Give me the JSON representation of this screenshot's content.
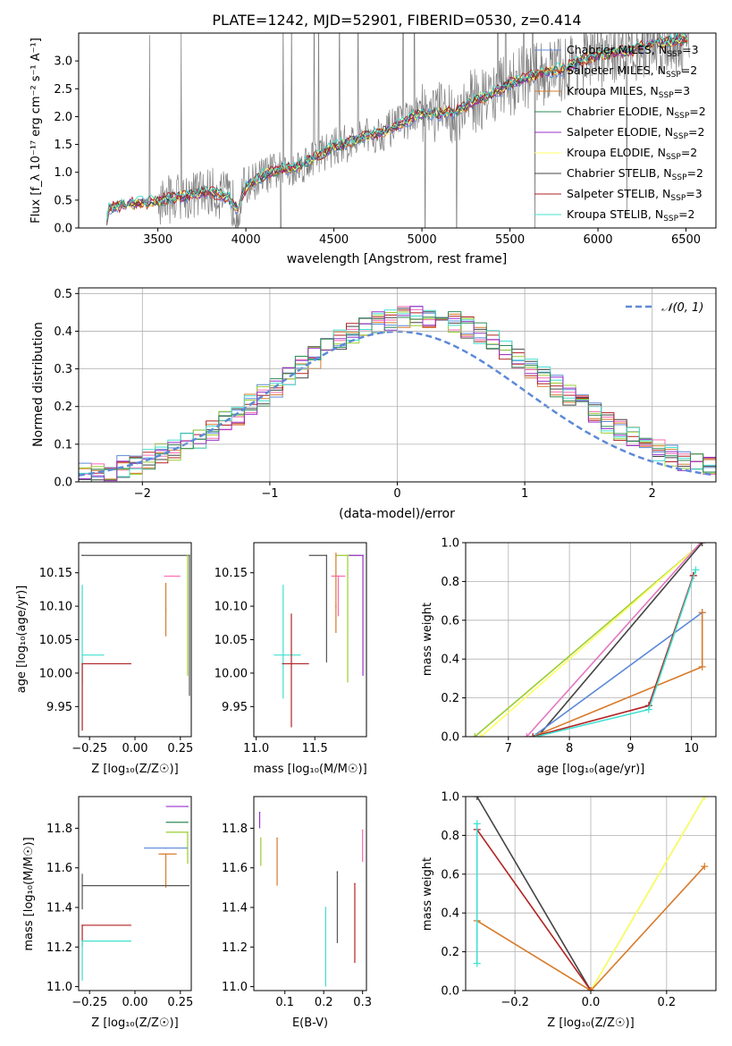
{
  "chart_data": [
    {
      "type": "line",
      "id": "spectrum",
      "title": "PLATE=1242, MJD=52901, FIBERID=0530, z=0.414",
      "xlabel": "wavelength [Angstrom, rest frame]",
      "ylabel": "Flux [f_λ 10⁻¹⁷ erg cm⁻² s⁻¹ A⁻¹]",
      "xlim": [
        3050,
        6670
      ],
      "ylim": [
        0,
        3.5
      ],
      "xticks": [
        "3500",
        "4000",
        "4500",
        "5000",
        "5500",
        "6000",
        "6500"
      ],
      "yticks": [
        "0.0",
        "0.5",
        "1.0",
        "1.5",
        "2.0",
        "2.5",
        "3.0"
      ],
      "legend_position": "right",
      "legend": [
        "Chabrier MILES, N_SSP=3",
        "Salpeter MILES, N_SSP=2",
        "Kroupa MILES, N_SSP=3",
        "Chabrier ELODIE, N_SSP=2",
        "Salpeter ELODIE, N_SSP=2",
        "Kroupa ELODIE, N_SSP=2",
        "Chabrier STELIB, N_SSP=2",
        "Salpeter STELIB, N_SSP=3",
        "Kroupa STELIB, N_SSP=2"
      ],
      "continuum": [
        [
          3200,
          0.0
        ],
        [
          3220,
          0.35
        ],
        [
          3300,
          0.42
        ],
        [
          3400,
          0.45
        ],
        [
          3500,
          0.48
        ],
        [
          3600,
          0.55
        ],
        [
          3700,
          0.6
        ],
        [
          3800,
          0.65
        ],
        [
          3900,
          0.55
        ],
        [
          3950,
          0.35
        ],
        [
          4000,
          0.75
        ],
        [
          4100,
          0.95
        ],
        [
          4200,
          1.05
        ],
        [
          4300,
          1.1
        ],
        [
          4400,
          1.3
        ],
        [
          4500,
          1.45
        ],
        [
          4600,
          1.55
        ],
        [
          4700,
          1.65
        ],
        [
          4800,
          1.75
        ],
        [
          4900,
          1.9
        ],
        [
          5000,
          2.05
        ],
        [
          5100,
          2.05
        ],
        [
          5200,
          2.1
        ],
        [
          5300,
          2.3
        ],
        [
          5400,
          2.4
        ],
        [
          5500,
          2.6
        ],
        [
          5600,
          2.7
        ],
        [
          5700,
          2.8
        ],
        [
          5800,
          2.85
        ],
        [
          5900,
          3.0
        ],
        [
          6000,
          3.1
        ],
        [
          6100,
          3.15
        ],
        [
          6200,
          3.2
        ],
        [
          6300,
          3.3
        ],
        [
          6400,
          3.35
        ],
        [
          6500,
          3.4
        ]
      ]
    },
    {
      "type": "histogram",
      "id": "residuals",
      "xlabel": "(data-model)/error",
      "ylabel": "Normed distribution",
      "xlim": [
        -2.5,
        2.5
      ],
      "ylim": [
        0,
        0.515
      ],
      "xticks": [
        "−2",
        "−1",
        "0",
        "1",
        "2"
      ],
      "yticks": [
        "0.0",
        "0.1",
        "0.2",
        "0.3",
        "0.4",
        "0.5"
      ],
      "legend": [
        "𝒩(0, 1)"
      ],
      "legend_position": "top-right",
      "grid": true
    },
    {
      "type": "scatter",
      "id": "age_vs_Z",
      "xlabel": "Z [log₁₀(Z/Z☉)]",
      "ylabel": "age  [log₁₀(age/yr)]",
      "xlim": [
        -0.31,
        0.31
      ],
      "ylim": [
        9.905,
        10.195
      ],
      "xticks": [
        "−0.25",
        "0.00",
        "0.25"
      ],
      "yticks": [
        "9.95",
        "10.00",
        "10.05",
        "10.10",
        "10.15"
      ],
      "points": [
        {
          "color": "#1f4fa0",
          "x": -0.29,
          "xerr": [
            0.0,
            0.0
          ],
          "y": 10.176,
          "yerr": [
            0.0,
            0.0
          ]
        },
        {
          "color": "#555555",
          "x": -0.29,
          "xerr": [
            0.0,
            0.59
          ],
          "y": 10.176,
          "yerr": [
            0.0,
            0.0
          ]
        },
        {
          "color": "#555555",
          "x": 0.3,
          "xerr": [
            0.0,
            0.0
          ],
          "y": 10.176,
          "yerr": [
            0.21,
            0.0
          ]
        },
        {
          "color": "#9acd32",
          "x": 0.29,
          "xerr": [
            0.0,
            0.0
          ],
          "y": 10.176,
          "yerr": [
            0.18,
            0.0
          ]
        },
        {
          "color": "#ff69b4",
          "x": 0.2,
          "xerr": [
            0.04,
            0.05
          ],
          "y": 10.145,
          "yerr": [
            0.0,
            0.0
          ]
        },
        {
          "color": "#d87a2a",
          "x": 0.17,
          "xerr": [
            0.0,
            0.0
          ],
          "y": 10.095,
          "yerr": [
            0.04,
            0.04
          ]
        },
        {
          "color": "#40e0d0",
          "x": -0.29,
          "xerr": [
            0.0,
            0.12
          ],
          "y": 10.027,
          "yerr": [
            0.045,
            0.105
          ]
        },
        {
          "color": "#b22222",
          "x": -0.29,
          "xerr": [
            0.0,
            0.27
          ],
          "y": 10.014,
          "yerr": [
            0.1,
            0.0
          ]
        }
      ]
    },
    {
      "type": "scatter",
      "id": "age_vs_mass",
      "xlabel": "mass [log₁₀(M/M☉)]",
      "ylabel": "",
      "xlim": [
        10.98,
        11.94
      ],
      "ylim": [
        9.905,
        10.195
      ],
      "xticks": [
        "11.0",
        "11.5"
      ],
      "yticks": [
        "9.95",
        "10.00",
        "10.05",
        "10.10",
        "10.15"
      ],
      "points": [
        {
          "color": "#555555",
          "x": 11.6,
          "xerr": [
            0.15,
            0.0
          ],
          "y": 10.176,
          "yerr": [
            0.16,
            0.0
          ]
        },
        {
          "color": "#9acd32",
          "x": 11.78,
          "xerr": [
            0.1,
            0.1
          ],
          "y": 10.176,
          "yerr": [
            0.19,
            0.0
          ]
        },
        {
          "color": "#9932cc",
          "x": 11.91,
          "xerr": [
            0.12,
            0.0
          ],
          "y": 10.176,
          "yerr": [
            0.18,
            0.0
          ]
        },
        {
          "color": "#ff69b4",
          "x": 11.7,
          "xerr": [
            0.06,
            0.06
          ],
          "y": 10.145,
          "yerr": [
            0.06,
            0.0
          ]
        },
        {
          "color": "#d87a2a",
          "x": 11.68,
          "xerr": [
            0.0,
            0.0
          ],
          "y": 10.1,
          "yerr": [
            0.04,
            0.08
          ]
        },
        {
          "color": "#40e0d0",
          "x": 11.23,
          "xerr": [
            0.08,
            0.15
          ],
          "y": 10.027,
          "yerr": [
            0.065,
            0.105
          ]
        },
        {
          "color": "#b22222",
          "x": 11.3,
          "xerr": [
            0.08,
            0.15
          ],
          "y": 10.014,
          "yerr": [
            0.095,
            0.075
          ]
        }
      ]
    },
    {
      "type": "line",
      "id": "weight_vs_age",
      "xlabel": "age  [log₁₀(age/yr)]",
      "ylabel": "mass weight",
      "xlim": [
        6.3,
        10.4
      ],
      "ylim": [
        0,
        1.0
      ],
      "xticks": [
        "7",
        "8",
        "9",
        "10"
      ],
      "yticks": [
        "0.0",
        "0.2",
        "0.4",
        "0.6",
        "0.8",
        "1.0"
      ],
      "grid": true,
      "series": [
        {
          "color": "#9acd32",
          "x": [
            6.45,
            10.176
          ],
          "y": [
            0.0,
            1.0
          ]
        },
        {
          "color": "#ffff66",
          "x": [
            6.55,
            10.176
          ],
          "y": [
            0.0,
            1.0
          ]
        },
        {
          "color": "#e377c2",
          "x": [
            7.3,
            10.15
          ],
          "y": [
            0.0,
            1.0
          ]
        },
        {
          "color": "#444444",
          "x": [
            7.48,
            10.176
          ],
          "y": [
            0.0,
            1.0
          ]
        },
        {
          "color": "#5d89d8",
          "x": [
            7.4,
            10.176
          ],
          "y": [
            0.0,
            0.64
          ]
        },
        {
          "color": "#d87a2a",
          "x": [
            7.4,
            10.176,
            10.176
          ],
          "y": [
            0.0,
            0.36,
            0.64
          ]
        },
        {
          "color": "#b22222",
          "x": [
            7.4,
            9.3,
            10.03,
            10.03
          ],
          "y": [
            0.0,
            0.16,
            0.83,
            0.83
          ]
        },
        {
          "color": "#40e0d0",
          "x": [
            7.45,
            9.3,
            10.07
          ],
          "y": [
            0.0,
            0.14,
            0.86
          ]
        }
      ]
    },
    {
      "type": "scatter",
      "id": "mass_vs_Z",
      "xlabel": "Z [log₁₀(Z/Z☉)]",
      "ylabel": "mass [log₁₀(M/M☉)]",
      "xlim": [
        -0.31,
        0.31
      ],
      "ylim": [
        10.98,
        11.96
      ],
      "xticks": [
        "−0.25",
        "0.00",
        "0.25"
      ],
      "yticks": [
        "11.0",
        "11.2",
        "11.4",
        "11.6",
        "11.8"
      ],
      "points": [
        {
          "color": "#9932cc",
          "x": 0.29,
          "xerr": [
            0.12,
            0.0
          ],
          "y": 11.91,
          "yerr": [
            0.0,
            0.0
          ]
        },
        {
          "color": "#2e8b57",
          "x": 0.29,
          "xerr": [
            0.12,
            0.0
          ],
          "y": 11.83,
          "yerr": [
            0.0,
            0.0
          ]
        },
        {
          "color": "#9acd32",
          "x": 0.29,
          "xerr": [
            0.12,
            0.0
          ],
          "y": 11.78,
          "yerr": [
            0.16,
            0.0
          ]
        },
        {
          "color": "#5d89d8",
          "x": 0.17,
          "xerr": [
            0.12,
            0.12
          ],
          "y": 11.7,
          "yerr": [
            0.0,
            0.0
          ]
        },
        {
          "color": "#d87a2a",
          "x": 0.17,
          "xerr": [
            0.04,
            0.06
          ],
          "y": 11.67,
          "yerr": [
            0.17,
            0.0
          ]
        },
        {
          "color": "#555555",
          "x": -0.29,
          "xerr": [
            0.0,
            0.59
          ],
          "y": 11.51,
          "yerr": [
            0.12,
            0.06
          ]
        },
        {
          "color": "#b22222",
          "x": -0.29,
          "xerr": [
            0.0,
            0.27
          ],
          "y": 11.31,
          "yerr": [
            0.11,
            0.0
          ]
        },
        {
          "color": "#40e0d0",
          "x": -0.29,
          "xerr": [
            0.0,
            0.27
          ],
          "y": 11.23,
          "yerr": [
            0.2,
            0.0
          ]
        }
      ]
    },
    {
      "type": "scatter",
      "id": "mass_vs_EBV",
      "xlabel": "E(B-V)",
      "ylabel": "",
      "xlim": [
        0.02,
        0.31
      ],
      "ylim": [
        10.98,
        11.96
      ],
      "xticks": [
        "0.1",
        "0.2",
        "0.3"
      ],
      "yticks": [
        "11.0",
        "11.2",
        "11.4",
        "11.6",
        "11.8"
      ],
      "points": [
        {
          "color": "#9932cc",
          "x": 0.035,
          "yerr": [
            0.08,
            0.0
          ],
          "y": 11.88
        },
        {
          "color": "#9acd32",
          "x": 0.038,
          "yerr": [
            0.14,
            0.0
          ],
          "y": 11.75
        },
        {
          "color": "#d87a2a",
          "x": 0.08,
          "yerr": [
            0.24,
            0.0
          ],
          "y": 11.75
        },
        {
          "color": "#40e0d0",
          "x": 0.205,
          "yerr": [
            0.4,
            0.0
          ],
          "y": 11.4
        },
        {
          "color": "#555555",
          "x": 0.235,
          "yerr": [
            0.36,
            0.0
          ],
          "y": 11.58
        },
        {
          "color": "#b22222",
          "x": 0.28,
          "yerr": [
            0.4,
            0.0
          ],
          "y": 11.52
        },
        {
          "color": "#ff69b4",
          "x": 0.3,
          "yerr": [
            0.16,
            0.0
          ],
          "y": 11.79
        }
      ]
    },
    {
      "type": "line",
      "id": "weight_vs_Z",
      "xlabel": "Z [log₁₀(Z/Z☉)]",
      "ylabel": "mass weight",
      "xlim": [
        -0.33,
        0.33
      ],
      "ylim": [
        0,
        1.0
      ],
      "xticks": [
        "−0.2",
        "0.0",
        "0.2"
      ],
      "yticks": [
        "0.0",
        "0.2",
        "0.4",
        "0.6",
        "0.8",
        "1.0"
      ],
      "grid": true,
      "series": [
        {
          "color": "#9acd32",
          "x": [
            0.0,
            0.3
          ],
          "y": [
            0.0,
            1.0
          ]
        },
        {
          "color": "#ffff66",
          "x": [
            0.0,
            0.3
          ],
          "y": [
            0.0,
            1.0
          ]
        },
        {
          "color": "#d87a2a",
          "x": [
            0.0,
            0.3
          ],
          "y": [
            0.0,
            0.64
          ]
        },
        {
          "color": "#444444",
          "x": [
            -0.3,
            0.0
          ],
          "y": [
            1.0,
            0.0
          ]
        },
        {
          "color": "#b22222",
          "x": [
            -0.3,
            0.0
          ],
          "y": [
            0.83,
            0.0
          ]
        },
        {
          "color": "#d87a2a",
          "x": [
            -0.3,
            0.0
          ],
          "y": [
            0.36,
            0.0
          ]
        },
        {
          "color": "#40e0d0",
          "x": [
            -0.3,
            -0.3
          ],
          "y": [
            0.14,
            0.86
          ]
        }
      ]
    }
  ]
}
